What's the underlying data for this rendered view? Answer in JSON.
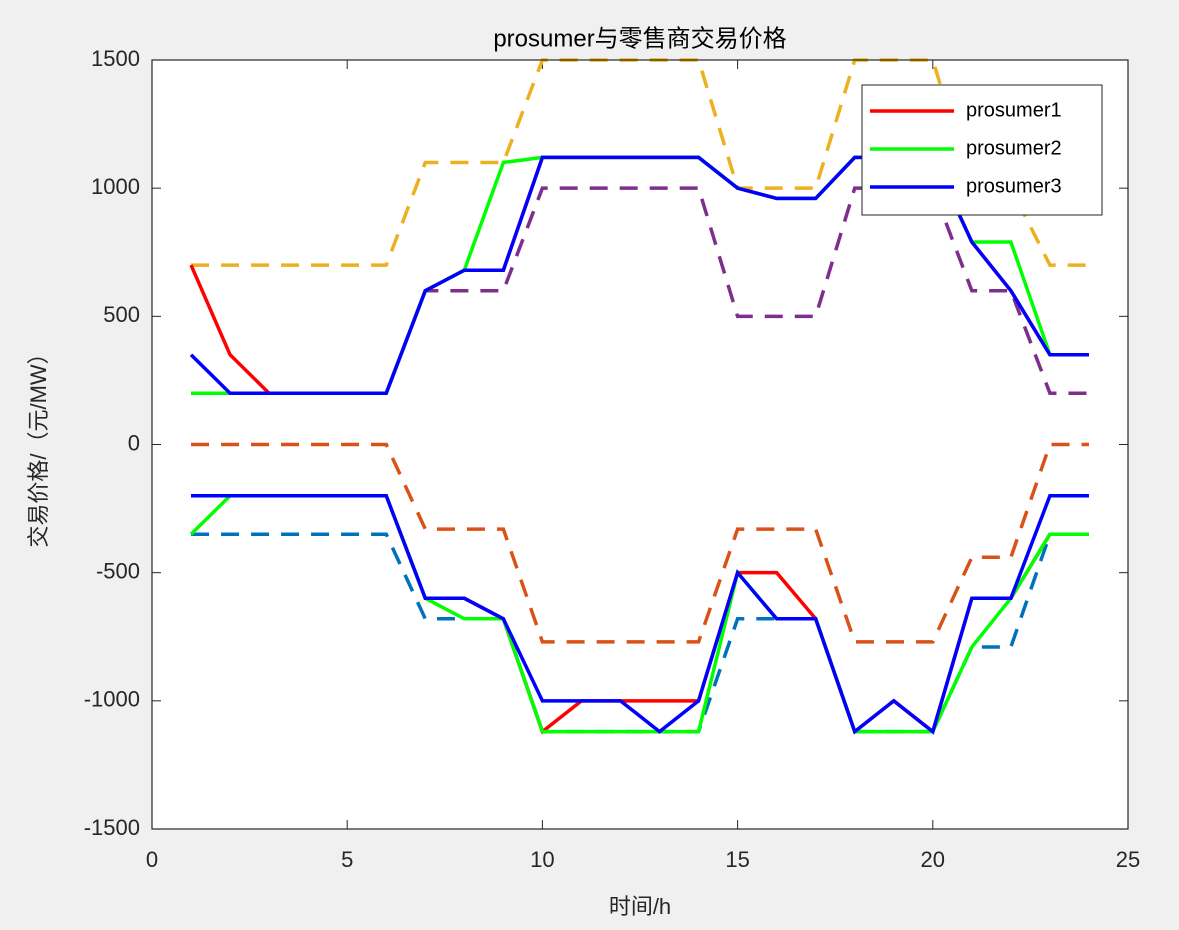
{
  "chart_data": {
    "type": "line",
    "title": "prosumer与零售商交易价格",
    "x_label": "时间/h",
    "y_label": "交易价格/（元/MW）",
    "x": [
      1,
      2,
      3,
      4,
      5,
      6,
      7,
      8,
      9,
      10,
      11,
      12,
      13,
      14,
      15,
      16,
      17,
      18,
      19,
      20,
      21,
      22,
      23,
      24
    ],
    "xlim": [
      0,
      25
    ],
    "xticks": [
      0,
      5,
      10,
      15,
      20,
      25
    ],
    "ylim": [
      -1500,
      1500
    ],
    "yticks": [
      -1500,
      -1000,
      -500,
      0,
      500,
      1000,
      1500
    ],
    "legend_position": "northeast",
    "series": [
      {
        "color": "#EDB120",
        "line_style": "dashed",
        "values": [
          700,
          700,
          700,
          700,
          700,
          700,
          1100,
          1100,
          1100,
          1500,
          1500,
          1500,
          1500,
          1500,
          1000,
          1000,
          1000,
          1500,
          1500,
          1500,
          1000,
          1000,
          700,
          700
        ]
      },
      {
        "color": "#7E2F8E",
        "line_style": "dashed",
        "values": [
          200,
          200,
          200,
          200,
          200,
          200,
          600,
          600,
          600,
          1000,
          1000,
          1000,
          1000,
          1000,
          500,
          500,
          500,
          1000,
          1000,
          1000,
          600,
          600,
          200,
          200
        ]
      },
      {
        "color": "#D95319",
        "line_style": "dashed",
        "values": [
          0,
          0,
          0,
          0,
          0,
          0,
          -330,
          -330,
          -330,
          -770,
          -770,
          -770,
          -770,
          -770,
          -330,
          -330,
          -330,
          -770,
          -770,
          -770,
          -440,
          -440,
          0,
          0
        ]
      },
      {
        "color": "#0072BD",
        "line_style": "dashed",
        "values": [
          -350,
          -350,
          -350,
          -350,
          -350,
          -350,
          -680,
          -680,
          -680,
          -1120,
          -1120,
          -1120,
          -1120,
          -1120,
          -680,
          -680,
          -680,
          -1120,
          -1120,
          -1120,
          -790,
          -790,
          -350,
          -350
        ]
      },
      {
        "name": "prosumer1",
        "color": "#FF0000",
        "line_style": "solid",
        "values": [
          700,
          350,
          200,
          200,
          200,
          200,
          600,
          680,
          680,
          1120,
          1120,
          1120,
          1120,
          1120,
          1000,
          960,
          960,
          1120,
          1120,
          1120,
          790,
          600,
          350,
          350
        ]
      },
      {
        "color": "#FF0000",
        "line_style": "solid",
        "values": [
          -200,
          -200,
          -200,
          -200,
          -200,
          -200,
          -600,
          -600,
          -680,
          -1120,
          -1000,
          -1000,
          -1000,
          -1000,
          -500,
          -500,
          -680,
          -1120,
          -1000,
          -1120,
          -600,
          -600,
          -350,
          -350
        ]
      },
      {
        "name": "prosumer2",
        "color": "#00FF00",
        "line_style": "solid",
        "values": [
          200,
          200,
          200,
          200,
          200,
          200,
          600,
          680,
          1100,
          1120,
          1120,
          1120,
          1120,
          1120,
          1000,
          960,
          960,
          1120,
          1120,
          1120,
          790,
          790,
          350,
          350
        ]
      },
      {
        "color": "#00FF00",
        "line_style": "solid",
        "values": [
          -350,
          -200,
          -200,
          -200,
          -200,
          -200,
          -600,
          -680,
          -680,
          -1120,
          -1120,
          -1120,
          -1120,
          -1120,
          -500,
          -680,
          -680,
          -1120,
          -1120,
          -1120,
          -790,
          -600,
          -350,
          -350
        ]
      },
      {
        "name": "prosumer3",
        "color": "#0000FF",
        "line_style": "solid",
        "values": [
          350,
          200,
          200,
          200,
          200,
          200,
          600,
          680,
          680,
          1120,
          1120,
          1120,
          1120,
          1120,
          1000,
          960,
          960,
          1120,
          1120,
          1120,
          790,
          600,
          350,
          350
        ]
      },
      {
        "color": "#0000FF",
        "line_style": "solid",
        "values": [
          -200,
          -200,
          -200,
          -200,
          -200,
          -200,
          -600,
          -600,
          -680,
          -1000,
          -1000,
          -1000,
          -1120,
          -1000,
          -500,
          -680,
          -680,
          -1120,
          -1000,
          -1120,
          -600,
          -600,
          -200,
          -200
        ]
      }
    ]
  }
}
